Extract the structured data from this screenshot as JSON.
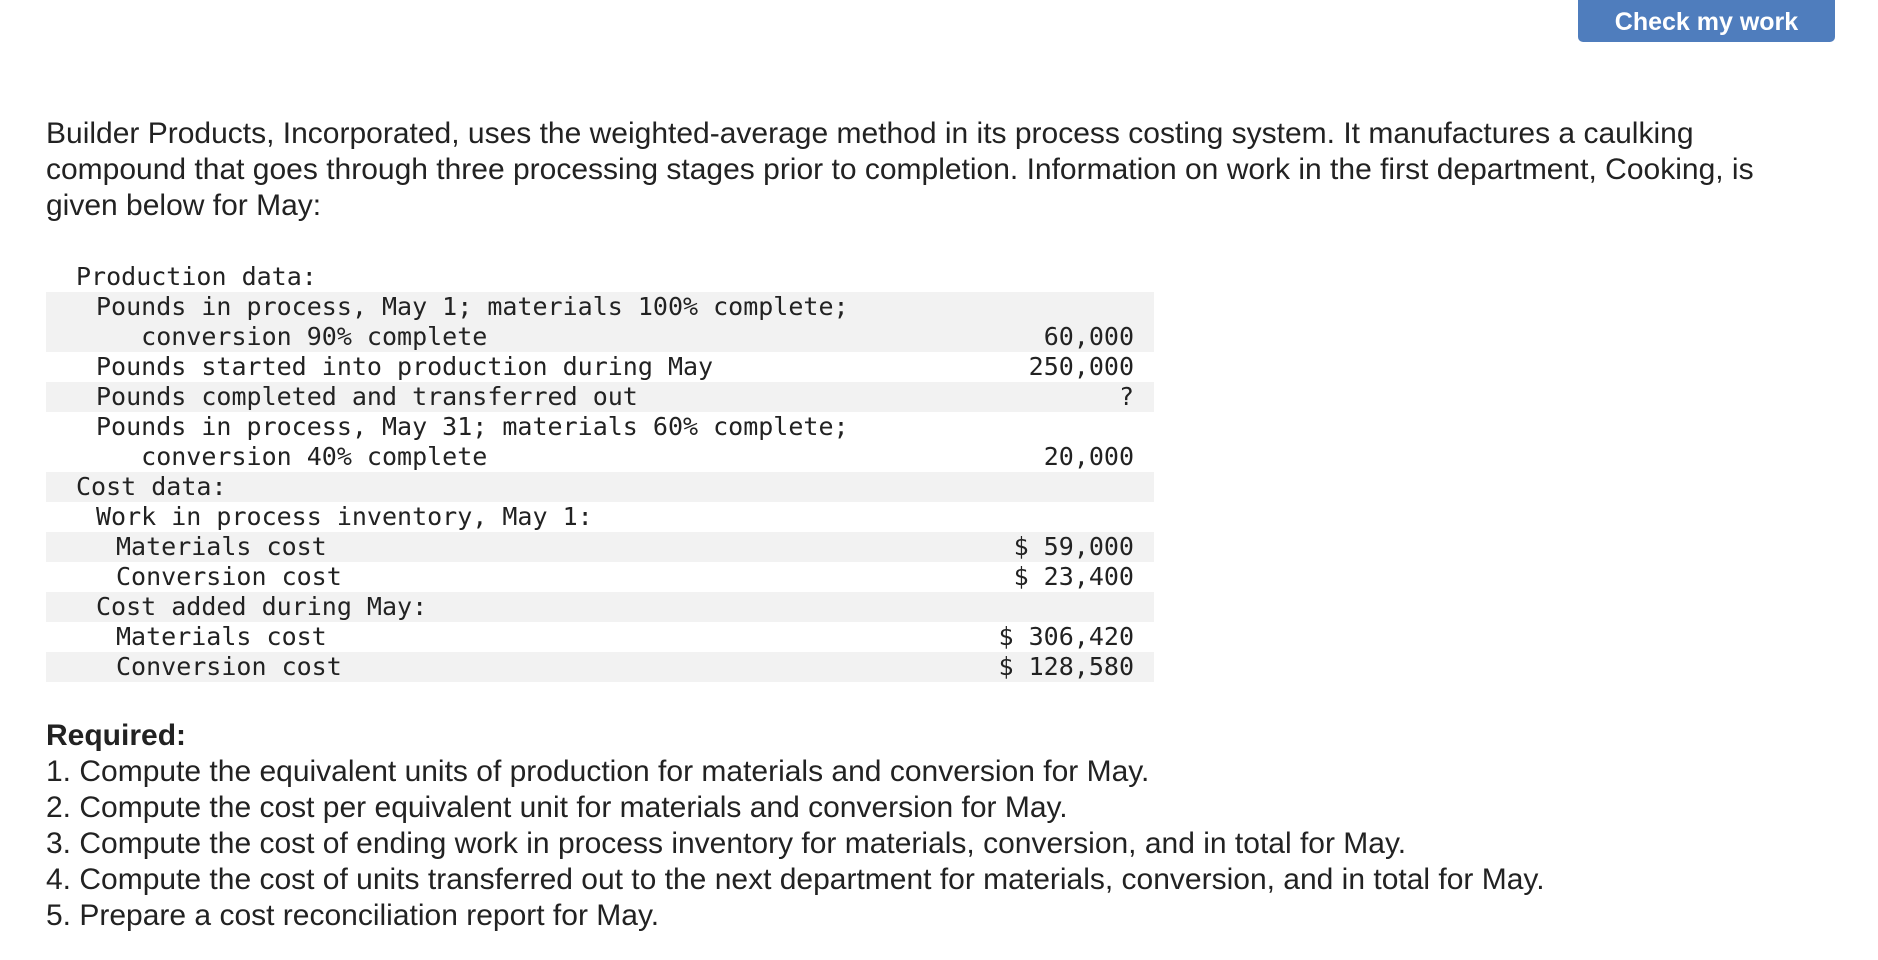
{
  "header": {
    "check_button_label": "Check my work"
  },
  "intro": {
    "text": "Builder Products, Incorporated, uses the weighted-average method in its process costing system. It manufactures a caulking compound that goes through three processing stages prior to completion. Information on work in the first department, Cooking, is given below for May:"
  },
  "table": {
    "rows": [
      {
        "label": "Production data:",
        "value": "",
        "indent": 1,
        "shaded": false,
        "tall": false
      },
      {
        "label": "Pounds in process, May 1; materials 100% complete;\n   conversion 90% complete",
        "value": "60,000",
        "indent": 2,
        "shaded": true,
        "tall": true
      },
      {
        "label": "Pounds started into production during May",
        "value": "250,000",
        "indent": 2,
        "shaded": false,
        "tall": false
      },
      {
        "label": "Pounds completed and transferred out",
        "value": "?",
        "indent": 2,
        "shaded": true,
        "tall": false
      },
      {
        "label": "Pounds in process, May 31; materials 60% complete;\n   conversion 40% complete",
        "value": "20,000",
        "indent": 2,
        "shaded": false,
        "tall": true
      },
      {
        "label": "Cost data:",
        "value": "",
        "indent": 1,
        "shaded": true,
        "tall": false
      },
      {
        "label": "Work in process inventory, May 1:",
        "value": "",
        "indent": 2,
        "shaded": false,
        "tall": false
      },
      {
        "label": "Materials cost",
        "value": "$ 59,000",
        "indent": 3,
        "shaded": true,
        "tall": false
      },
      {
        "label": "Conversion cost",
        "value": "$ 23,400",
        "indent": 3,
        "shaded": false,
        "tall": false
      },
      {
        "label": "Cost added during May:",
        "value": "",
        "indent": 2,
        "shaded": true,
        "tall": false
      },
      {
        "label": "Materials cost",
        "value": "$ 306,420",
        "indent": 3,
        "shaded": false,
        "tall": false
      },
      {
        "label": "Conversion cost",
        "value": "$ 128,580",
        "indent": 3,
        "shaded": true,
        "tall": false
      }
    ]
  },
  "required": {
    "title": "Required:",
    "items": [
      "1. Compute the equivalent units of production for materials and conversion for May.",
      "2. Compute the cost per equivalent unit for materials and conversion for May.",
      "3. Compute the cost of ending work in process inventory for materials, conversion, and in total for May.",
      "4. Compute the cost of units transferred out to the next department for materials, conversion, and in total for May.",
      "5. Prepare a cost reconciliation report for May."
    ]
  }
}
